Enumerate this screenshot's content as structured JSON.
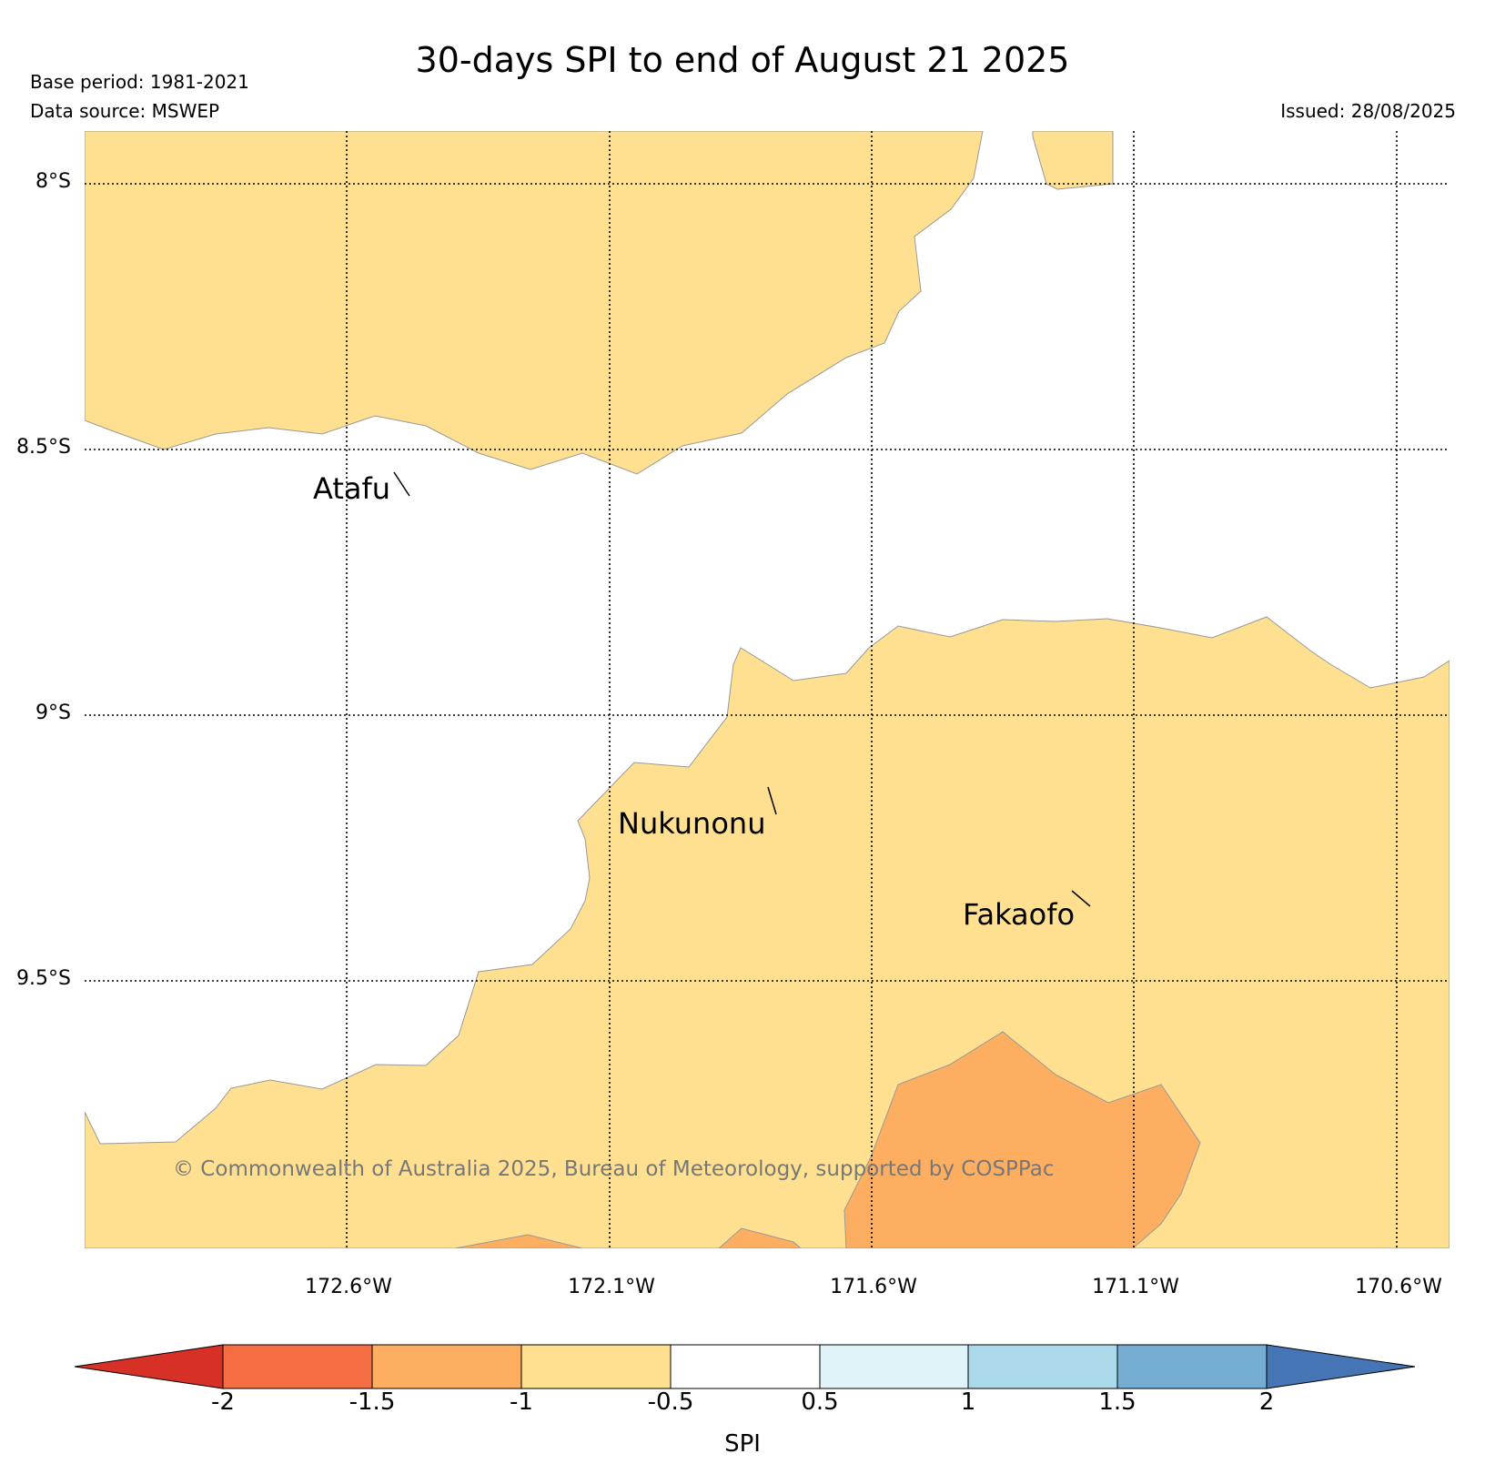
{
  "title": "30-days SPI to end of August 21 2025",
  "base_period": "Base period: 1981-2021",
  "data_source": "Data source: MSWEP",
  "issued": "Issued: 28/08/2025",
  "copyright": "© Commonwealth of Australia 2025, Bureau of Meteorology, supported by COSPPac",
  "map": {
    "lat_ticks": [
      "8°S",
      "8.5°S",
      "9°S",
      "9.5°S"
    ],
    "lon_ticks": [
      "172.6°W",
      "172.1°W",
      "171.6°W",
      "171.1°W",
      "170.6°W"
    ],
    "places": [
      "Atafu",
      "Nukunonu",
      "Fakaofo"
    ],
    "ocean_color": "#ffffff",
    "grid_style": "dotted"
  },
  "colorbar": {
    "label": "SPI",
    "ticks": [
      "-2",
      "-1.5",
      "-1",
      "-0.5",
      "0.5",
      "1",
      "1.5",
      "2"
    ],
    "classes": [
      {
        "range": "< -2",
        "color": "#d73027"
      },
      {
        "range": "-2 to -1.5",
        "color": "#f46d43"
      },
      {
        "range": "-1.5 to -1",
        "color": "#fdae61"
      },
      {
        "range": "-1 to -0.5",
        "color": "#fee090"
      },
      {
        "range": "-0.5 to 0.5",
        "color": "#ffffff"
      },
      {
        "range": "0.5 to 1",
        "color": "#e0f3f8"
      },
      {
        "range": "1 to 1.5",
        "color": "#abd9e9"
      },
      {
        "range": "1.5 to 2",
        "color": "#74add1"
      },
      {
        "range": "> 2",
        "color": "#4575b4"
      }
    ]
  }
}
